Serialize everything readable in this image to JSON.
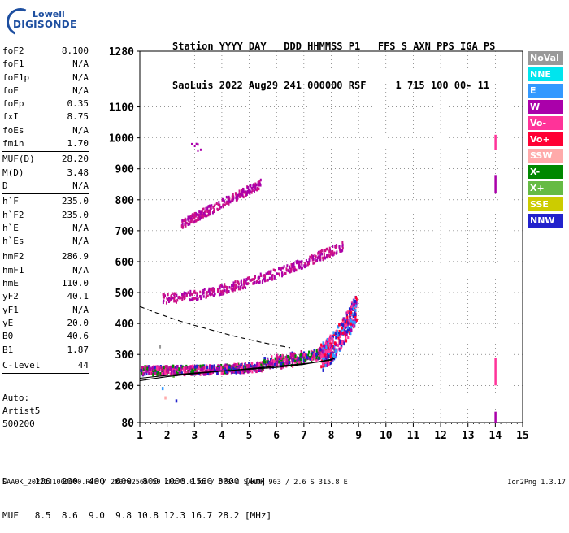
{
  "logo": {
    "line1": "Lowell",
    "line2": "DIGISONDE"
  },
  "header": {
    "line1": "Station YYYY DAY   DDD HHMMSS P1   FFS S AXN PPS IGA PS",
    "line2": "SaoLuis 2022 Aug29 241 000000 RSF     1 715 100 00- 11"
  },
  "params": [
    {
      "k": "foF2",
      "v": "8.100"
    },
    {
      "k": "foF1",
      "v": "N/A"
    },
    {
      "k": "foF1p",
      "v": "N/A"
    },
    {
      "k": "foE",
      "v": "N/A"
    },
    {
      "k": "foEp",
      "v": "0.35"
    },
    {
      "k": "fxI",
      "v": "8.75"
    },
    {
      "k": "foEs",
      "v": "N/A"
    },
    {
      "k": "fmin",
      "v": "1.70"
    },
    {
      "sep": true
    },
    {
      "k": "MUF(D)",
      "v": "28.20"
    },
    {
      "k": "M(D)",
      "v": "3.48"
    },
    {
      "k": "D",
      "v": "N/A"
    },
    {
      "sep": true
    },
    {
      "k": "h`F",
      "v": "235.0"
    },
    {
      "k": "h`F2",
      "v": "235.0"
    },
    {
      "k": "h`E",
      "v": "N/A"
    },
    {
      "k": "h`Es",
      "v": "N/A"
    },
    {
      "sep": true
    },
    {
      "k": "hmF2",
      "v": "286.9"
    },
    {
      "k": "hmF1",
      "v": "N/A"
    },
    {
      "k": "hmE",
      "v": "110.0"
    },
    {
      "k": "yF2",
      "v": "40.1"
    },
    {
      "k": "yF1",
      "v": "N/A"
    },
    {
      "k": "yE",
      "v": "20.0"
    },
    {
      "k": "B0",
      "v": "40.6"
    },
    {
      "k": "B1",
      "v": "1.87"
    },
    {
      "sep": true
    },
    {
      "k": "C-level",
      "v": "44"
    },
    {
      "sep": true
    }
  ],
  "stacked": [
    "Auto:",
    "Artist5",
    "500200"
  ],
  "footer": {
    "d_row": "D     100  200  400  600  800 1000 1500 3000 [km]",
    "muf_row": "MUF   8.5  8.6  9.0  9.8 10.8 12.3 16.7 28.2 [MHz]"
  },
  "bottom_line": "SAA0K_2022241000000.RSF / 280fx256h 50 kHz 5.0 km / DPS-4 SAA0K 903 / 2.6 S 315.8 E",
  "version": "Ion2Png 1.3.17",
  "legend": [
    {
      "label": "NoVal",
      "color": "#999999"
    },
    {
      "label": "NNE",
      "color": "#00e5ee"
    },
    {
      "label": "E",
      "color": "#3399ff"
    },
    {
      "label": "W",
      "color": "#aa00aa"
    },
    {
      "label": "Vo-",
      "color": "#ff3399"
    },
    {
      "label": "Vo+",
      "color": "#ff0033"
    },
    {
      "label": "SSW",
      "color": "#ffaaaa"
    },
    {
      "label": "X-",
      "color": "#008800"
    },
    {
      "label": "X+",
      "color": "#66bb44"
    },
    {
      "label": "SSE",
      "color": "#cccc00"
    },
    {
      "label": "NNW",
      "color": "#2222cc"
    }
  ],
  "chart_data": {
    "type": "scatter",
    "x_ticks": [
      "1",
      "2",
      "3",
      "4",
      "5",
      "6",
      "7",
      "8",
      "9",
      "10",
      "11",
      "12",
      "13",
      "14",
      "15"
    ],
    "y_ticks": [
      "80",
      "200",
      "300",
      "400",
      "500",
      "600",
      "700",
      "800",
      "900",
      "1000",
      "1100",
      "1280"
    ],
    "xlim": [
      1,
      15
    ],
    "ylim": [
      80,
      1280
    ],
    "grid": true,
    "curves": [
      {
        "style": "dashed",
        "x": [
          1.0,
          1.5,
          2.0,
          2.5,
          3.0,
          3.5,
          4.0,
          4.5,
          5.0,
          5.5,
          6.0,
          6.5
        ],
        "y": [
          455,
          438,
          422,
          407,
          394,
          382,
          370,
          358,
          348,
          338,
          330,
          322
        ]
      },
      {
        "style": "solid",
        "x": [
          1.0,
          1.5,
          2.0,
          2.5,
          3.0,
          3.5,
          4.0,
          4.5,
          5.0,
          5.5,
          6.0,
          6.5,
          7.0,
          7.5,
          8.0,
          8.1,
          8.1,
          7.5,
          7.0,
          6.0,
          5.0,
          4.0,
          3.0,
          2.0,
          1.0
        ],
        "y": [
          215,
          222,
          228,
          233,
          238,
          242,
          246,
          250,
          254,
          258,
          262,
          266,
          270,
          275,
          282,
          288,
          286,
          276,
          268,
          258,
          252,
          247,
          240,
          232,
          223
        ]
      }
    ],
    "clusters": [
      {
        "x": [
          1.0,
          7.5
        ],
        "y": [
          238,
          300
        ],
        "colors": [
          "#aa00aa",
          "#ff3399",
          "#2222cc",
          "#008800",
          "#cc1188"
        ]
      },
      {
        "x": [
          6.2,
          8.1
        ],
        "y": [
          270,
          335
        ],
        "colors": [
          "#ff3399",
          "#ff0033",
          "#aa00aa",
          "#008800",
          "#cc1188"
        ]
      },
      {
        "x": [
          7.8,
          8.9
        ],
        "y": [
          300,
          500
        ],
        "colors": [
          "#ff3399",
          "#ff0033",
          "#3399ff",
          "#2222cc",
          "#aa00aa"
        ]
      },
      {
        "x": [
          1.8,
          8.5
        ],
        "y": [
          470,
          660
        ],
        "colors": [
          "#aa00aa",
          "#cc1188"
        ]
      },
      {
        "x": [
          2.5,
          5.4
        ],
        "y": [
          710,
          870
        ],
        "colors": [
          "#aa00aa",
          "#cc1188"
        ]
      },
      {
        "x": [
          2.8,
          3.3
        ],
        "y": [
          940,
          980
        ],
        "colors": [
          "#aa00aa"
        ]
      }
    ],
    "stray_points": [
      {
        "x": 1.7,
        "y": 325,
        "color": "#999999"
      },
      {
        "x": 1.8,
        "y": 190,
        "color": "#3399ff"
      },
      {
        "x": 1.9,
        "y": 160,
        "color": "#ffaaaa"
      },
      {
        "x": 2.3,
        "y": 150,
        "color": "#2222cc"
      },
      {
        "x": 1.6,
        "y": 255,
        "color": "#ff3399"
      },
      {
        "x": 2.2,
        "y": 230,
        "color": "#66bb44"
      }
    ],
    "verticals_x14": [
      {
        "y": [
          960,
          1010
        ],
        "color": "#ff3399"
      },
      {
        "y": [
          820,
          880
        ],
        "color": "#aa00aa"
      },
      {
        "y": [
          200,
          290
        ],
        "color": "#ff3399"
      },
      {
        "y": [
          80,
          115
        ],
        "color": "#aa00aa"
      }
    ]
  }
}
